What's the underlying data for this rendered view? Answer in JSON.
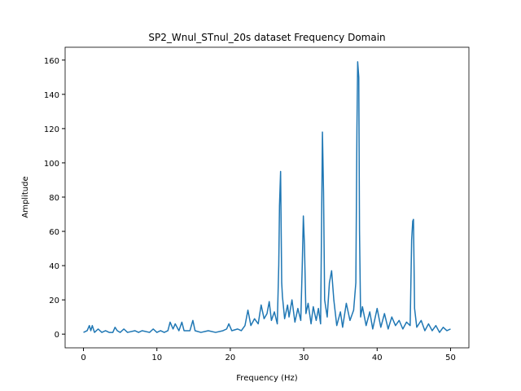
{
  "chart_data": {
    "type": "line",
    "title": "SP2_Wnul_STnul_20s dataset Frequency Domain",
    "x_label": "Frequency (Hz)",
    "y_label": "Amplitude",
    "xlim": [
      -2.5,
      52.5
    ],
    "ylim": [
      -8,
      167.5
    ],
    "xticks": [
      0,
      10,
      20,
      30,
      40,
      50
    ],
    "yticks": [
      0,
      20,
      40,
      60,
      80,
      100,
      120,
      140,
      160
    ],
    "grid": false,
    "series": [
      {
        "color": "#1f77b4",
        "x": [
          0,
          0.5,
          0.8,
          1,
          1.2,
          1.5,
          2,
          2.5,
          3,
          3.5,
          4,
          4.3,
          4.6,
          5,
          5.5,
          6,
          7,
          7.5,
          8,
          9,
          9.5,
          10,
          10.5,
          11,
          11.5,
          11.8,
          12.2,
          12.5,
          13,
          13.4,
          13.7,
          14.5,
          14.9,
          15.2,
          16,
          17,
          18,
          19,
          19.5,
          19.8,
          20.2,
          21,
          21.5,
          22,
          22.4,
          22.8,
          23.3,
          23.8,
          24.2,
          24.6,
          25,
          25.3,
          25.6,
          26,
          26.4,
          26.6,
          26.7,
          26.85,
          27,
          27.1,
          27.4,
          27.8,
          28,
          28.4,
          28.8,
          29.2,
          29.6,
          29.8,
          29.95,
          30.1,
          30.3,
          30.6,
          31,
          31.3,
          31.7,
          32,
          32.3,
          32.4,
          32.55,
          32.7,
          32.85,
          33.2,
          33.5,
          33.8,
          34.1,
          34.5,
          35,
          35.3,
          35.8,
          36.3,
          36.8,
          37.1,
          37.25,
          37.35,
          37.5,
          37.6,
          37.75,
          38,
          38.5,
          39,
          39.4,
          40,
          40.5,
          41,
          41.5,
          42,
          42.5,
          43,
          43.5,
          44,
          44.5,
          44.7,
          44.85,
          44.95,
          45.1,
          45.4,
          46,
          46.5,
          47,
          47.5,
          48,
          48.5,
          49,
          49.5,
          50
        ],
        "values": [
          1,
          2,
          5,
          2,
          5,
          1,
          3,
          1,
          2,
          1,
          1,
          4,
          2,
          1,
          3,
          1,
          2,
          1,
          2,
          1,
          3,
          1,
          2,
          1,
          2,
          7,
          3,
          6,
          2,
          7,
          2,
          2,
          8,
          2,
          1,
          2,
          1,
          2,
          3,
          6,
          2,
          3,
          2,
          5,
          14,
          5,
          9,
          6,
          17,
          9,
          12,
          19,
          8,
          13,
          6,
          40,
          75,
          95,
          30,
          22,
          9,
          17,
          10,
          20,
          7,
          15,
          8,
          40,
          69,
          52,
          12,
          18,
          6,
          16,
          8,
          15,
          6,
          50,
          118,
          83,
          20,
          10,
          30,
          37,
          20,
          5,
          13,
          4,
          18,
          8,
          14,
          30,
          120,
          159,
          150,
          60,
          10,
          16,
          5,
          13,
          3,
          15,
          4,
          12,
          3,
          10,
          5,
          8,
          3,
          7,
          5,
          55,
          66,
          67,
          15,
          4,
          8,
          2,
          6,
          2,
          5,
          1,
          4,
          2,
          3
        ]
      }
    ]
  }
}
